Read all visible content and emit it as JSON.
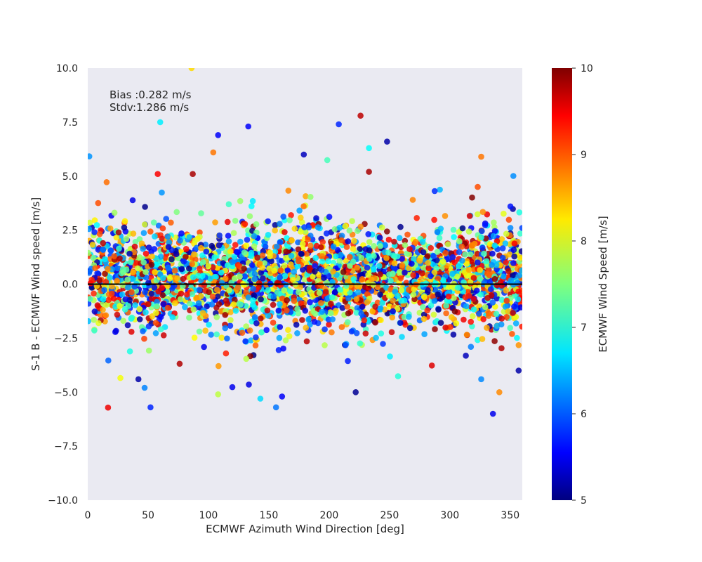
{
  "chart_data": {
    "type": "scatter",
    "xlabel": "ECMWF Azimuth Wind Direction [deg]",
    "ylabel": "S-1 B - ECMWF Wind speed [m/s]",
    "xlim": [
      0,
      360
    ],
    "ylim": [
      -10,
      10
    ],
    "x_ticks": [
      "0",
      "50",
      "100",
      "150",
      "200",
      "250",
      "300",
      "350"
    ],
    "y_ticks": [
      "10.0",
      "7.5",
      "5.0",
      "2.5",
      "0.0",
      "−2.5",
      "−5.0",
      "−7.5",
      "−10.0"
    ],
    "annotations": [
      "Bias :0.282 m/s",
      "Stdv:1.286 m/s"
    ],
    "reference_line_y": 0,
    "grid": false,
    "plot_background": "#eaeaf2",
    "colorbar": {
      "label": "ECMWF Wind Speed [m/s]",
      "colormap": "jet",
      "range": [
        5,
        10
      ],
      "ticks": [
        "5",
        "6",
        "7",
        "8",
        "9",
        "10"
      ]
    },
    "n_points_synthetic": 3200,
    "points": [
      {
        "x": 86,
        "y": 10.0,
        "c": 8.3
      },
      {
        "x": 60,
        "y": 7.5,
        "c": 6.8
      },
      {
        "x": 108,
        "y": 6.9,
        "c": 5.6
      },
      {
        "x": 133,
        "y": 7.3,
        "c": 5.6
      },
      {
        "x": 208,
        "y": 7.4,
        "c": 5.8
      },
      {
        "x": 226,
        "y": 7.8,
        "c": 9.7
      },
      {
        "x": 248,
        "y": 6.6,
        "c": 5.2
      },
      {
        "x": 233,
        "y": 6.3,
        "c": 6.9
      },
      {
        "x": 104,
        "y": 6.1,
        "c": 8.8
      },
      {
        "x": 179,
        "y": 6.0,
        "c": 5.3
      },
      {
        "x": 326,
        "y": 5.9,
        "c": 8.8
      },
      {
        "x": 58,
        "y": 5.1,
        "c": 9.4
      },
      {
        "x": 87,
        "y": 5.1,
        "c": 9.8
      },
      {
        "x": 233,
        "y": 5.2,
        "c": 9.8
      },
      {
        "x": 42,
        "y": -4.4,
        "c": 5.2
      },
      {
        "x": 52,
        "y": -5.7,
        "c": 5.8
      },
      {
        "x": 108,
        "y": -5.1,
        "c": 7.8
      },
      {
        "x": 143,
        "y": -5.3,
        "c": 6.7
      },
      {
        "x": 156,
        "y": -5.7,
        "c": 6.2
      },
      {
        "x": 161,
        "y": -5.2,
        "c": 5.6
      },
      {
        "x": 222,
        "y": -5.0,
        "c": 5.1
      },
      {
        "x": 341,
        "y": -5.0,
        "c": 8.7
      },
      {
        "x": 357,
        "y": -4.0,
        "c": 5.2
      },
      {
        "x": 326,
        "y": -4.4,
        "c": 6.3
      }
    ]
  }
}
